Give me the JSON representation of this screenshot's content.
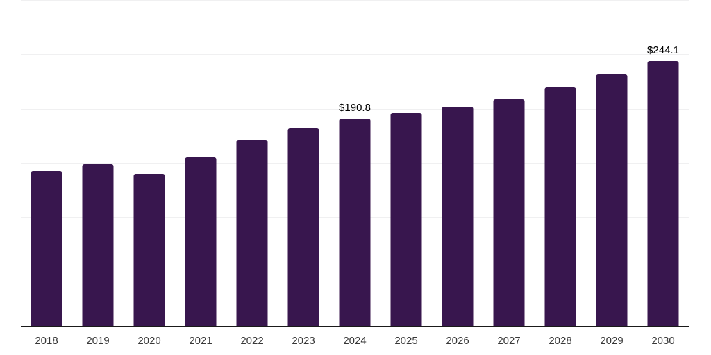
{
  "chart_data": {
    "type": "bar",
    "title": "",
    "xlabel": "",
    "ylabel": "",
    "categories": [
      "2018",
      "2019",
      "2020",
      "2021",
      "2022",
      "2023",
      "2024",
      "2025",
      "2026",
      "2027",
      "2028",
      "2029",
      "2030"
    ],
    "values": [
      142.5,
      149.0,
      139.8,
      155.3,
      171.0,
      181.7,
      190.8,
      196.1,
      202.0,
      208.8,
      219.4,
      231.6,
      244.1
    ],
    "data_labels": {
      "2024": "$190.8",
      "2030": "$244.1"
    },
    "ylim": [
      0,
      300
    ],
    "grid_step": 50,
    "grid": "horizontal gridlines only, no y-axis tick labels, no legend",
    "legend_position": "none",
    "colors": {
      "bar": "#38164e",
      "axis_line": "#1a1a1a",
      "gridline": "#f0f0f1",
      "tick_label": "#383838",
      "value_label": "#000000",
      "background": "#ffffff"
    }
  }
}
